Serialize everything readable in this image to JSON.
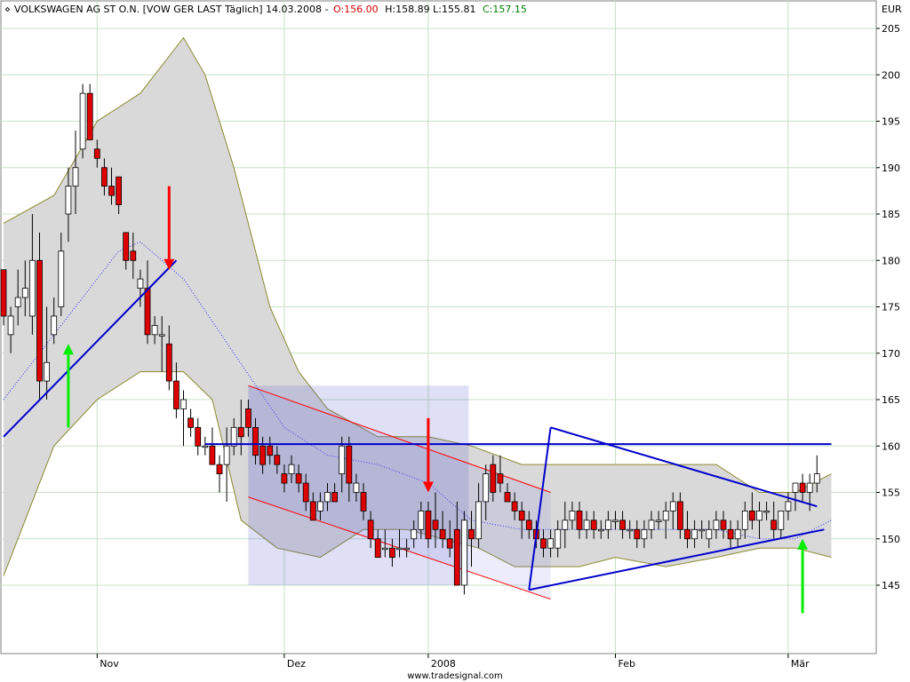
{
  "header": {
    "instrument": "VOLKSWAGEN AG ST O.N. [VOW GER LAST Täglich] 14.03.2008 -",
    "open": "O:156.00",
    "high_low": "H:158.89 L:155.81",
    "close": "C:157.15"
  },
  "credit": "www.tradesignal.com",
  "chart_data": {
    "type": "candlestick",
    "title": "VOLKSWAGEN AG ST O.N. [VOW GER LAST Täglich] 14.03.2008",
    "currency": "EUR",
    "ylim": [
      140,
      206
    ],
    "grid": true,
    "y_ticks": [
      145,
      150,
      155,
      160,
      165,
      170,
      175,
      180,
      185,
      190,
      195,
      200,
      205
    ],
    "x_ticks": [
      {
        "label": "Nov",
        "index": 13
      },
      {
        "label": "Dez",
        "index": 39
      },
      {
        "label": "2008",
        "index": 59
      },
      {
        "label": "Feb",
        "index": 85
      },
      {
        "label": "Mär",
        "index": 109
      }
    ],
    "colors": {
      "up_candle": "#ffffff",
      "down_candle": "#e00000",
      "trendline": "#0000cc",
      "channel": "#ff0000",
      "up_arrow": "#00ee00",
      "down_arrow": "#ff0000",
      "band_fill": "#d9d9d9",
      "band_line": "#8a8a30",
      "grid": "#c8e0c8"
    },
    "ohlc": [
      [
        179,
        179,
        173,
        174
      ],
      [
        172,
        175,
        170,
        174
      ],
      [
        175,
        179,
        173,
        176
      ],
      [
        176,
        180,
        174,
        177
      ],
      [
        174,
        185,
        172,
        180
      ],
      [
        180,
        183,
        165,
        167
      ],
      [
        167,
        175,
        165,
        169
      ],
      [
        172,
        176,
        171,
        174
      ],
      [
        175,
        183,
        174,
        181
      ],
      [
        185,
        190,
        182,
        188
      ],
      [
        188,
        194,
        185,
        190
      ],
      [
        192,
        199,
        191,
        198
      ],
      [
        198,
        199,
        193,
        193
      ],
      [
        192,
        193,
        190,
        191
      ],
      [
        190,
        191,
        187,
        188
      ],
      [
        188,
        190,
        186,
        187
      ],
      [
        189,
        189,
        185,
        186
      ],
      [
        183,
        183,
        179,
        180
      ],
      [
        181,
        183,
        178,
        180
      ],
      [
        177,
        179,
        175,
        178
      ],
      [
        177,
        180,
        171,
        172
      ],
      [
        172,
        174,
        171,
        173
      ],
      [
        172,
        174,
        168,
        172
      ],
      [
        171,
        173,
        166,
        167
      ],
      [
        167,
        169,
        163,
        164
      ],
      [
        164,
        166,
        160,
        165
      ],
      [
        163,
        164,
        161,
        162
      ],
      [
        162,
        163,
        159,
        160
      ],
      [
        160,
        161,
        159,
        160
      ],
      [
        160,
        162,
        158,
        158
      ],
      [
        158,
        159,
        155,
        157
      ],
      [
        158,
        162,
        154,
        160
      ],
      [
        160,
        163,
        159,
        162
      ],
      [
        162,
        165,
        159,
        161
      ],
      [
        164,
        165,
        161,
        162
      ],
      [
        162,
        163,
        158,
        159
      ],
      [
        160,
        161,
        157,
        158
      ],
      [
        160,
        161,
        158,
        159
      ],
      [
        159,
        160,
        157,
        158
      ],
      [
        157,
        158,
        155,
        156
      ],
      [
        157,
        159,
        156,
        158
      ],
      [
        157,
        158,
        155,
        156
      ],
      [
        156,
        157,
        153,
        154
      ],
      [
        154,
        155,
        152,
        152
      ],
      [
        153,
        155,
        152,
        154
      ],
      [
        154,
        156,
        153,
        155
      ],
      [
        155,
        156,
        154,
        154
      ],
      [
        157,
        161,
        155,
        160
      ],
      [
        160,
        161,
        154,
        156
      ],
      [
        155,
        157,
        154,
        156
      ],
      [
        155,
        156,
        152,
        153
      ],
      [
        152,
        153,
        149,
        150
      ],
      [
        150,
        151,
        148,
        148
      ],
      [
        149,
        151,
        148,
        149
      ],
      [
        149,
        150,
        147,
        148
      ],
      [
        149,
        151,
        148,
        149
      ],
      [
        149,
        150,
        148,
        149
      ],
      [
        150,
        152,
        149,
        151
      ],
      [
        151,
        154,
        150,
        153
      ],
      [
        153,
        154,
        149,
        150
      ],
      [
        152,
        155,
        149,
        151
      ],
      [
        151,
        153,
        149,
        150
      ],
      [
        150,
        152,
        148,
        149
      ],
      [
        151,
        154,
        145,
        145
      ],
      [
        145,
        153,
        144,
        152
      ],
      [
        151,
        153,
        147,
        150
      ],
      [
        150,
        156,
        149,
        154
      ],
      [
        154,
        158,
        152,
        157
      ],
      [
        158,
        159,
        154,
        155
      ],
      [
        157,
        159,
        155,
        156
      ],
      [
        155,
        156,
        154,
        154
      ],
      [
        154,
        155,
        152,
        153
      ],
      [
        153,
        154,
        150,
        152
      ],
      [
        152,
        153,
        150,
        151
      ],
      [
        151,
        152,
        149,
        150
      ],
      [
        150,
        151,
        148,
        149
      ],
      [
        149,
        151,
        148,
        150
      ],
      [
        149,
        152,
        148,
        151
      ],
      [
        151,
        154,
        149,
        152
      ],
      [
        152,
        154,
        151,
        153
      ],
      [
        153,
        154,
        150,
        151
      ],
      [
        151,
        153,
        150,
        152
      ],
      [
        152,
        153,
        150,
        151
      ],
      [
        151,
        152,
        150,
        151
      ],
      [
        151,
        153,
        150,
        152
      ],
      [
        152,
        153,
        151,
        152
      ],
      [
        152,
        153,
        150,
        151
      ],
      [
        151,
        152,
        150,
        151
      ],
      [
        151,
        152,
        149,
        150
      ],
      [
        150,
        152,
        149,
        151
      ],
      [
        151,
        153,
        150,
        152
      ],
      [
        152,
        153,
        151,
        152
      ],
      [
        152,
        154,
        150,
        153
      ],
      [
        153,
        155,
        151,
        154
      ],
      [
        154,
        155,
        150,
        151
      ],
      [
        151,
        153,
        149,
        150
      ],
      [
        150,
        152,
        149,
        151
      ],
      [
        151,
        152,
        150,
        151
      ],
      [
        150,
        152,
        149,
        151
      ],
      [
        151,
        153,
        150,
        152
      ],
      [
        152,
        153,
        150,
        151
      ],
      [
        151,
        152,
        149,
        150
      ],
      [
        150,
        152,
        149,
        151
      ],
      [
        151,
        154,
        150,
        153
      ],
      [
        153,
        155,
        151,
        152
      ],
      [
        152,
        154,
        150,
        153
      ],
      [
        153,
        154,
        152,
        153
      ],
      [
        152,
        154,
        150,
        151
      ],
      [
        151,
        153,
        150,
        153
      ],
      [
        153,
        155,
        152,
        154
      ],
      [
        155,
        156,
        153,
        156
      ],
      [
        156,
        157,
        154,
        155
      ],
      [
        155,
        157,
        153,
        156
      ],
      [
        156,
        159,
        155,
        157
      ]
    ],
    "middle_band": [
      [
        0,
        165
      ],
      [
        13,
        178
      ],
      [
        16,
        181
      ],
      [
        19,
        182
      ],
      [
        25,
        178
      ],
      [
        32,
        170
      ],
      [
        39,
        162
      ],
      [
        45,
        159
      ],
      [
        52,
        158
      ],
      [
        59,
        156
      ],
      [
        65,
        152
      ],
      [
        72,
        151
      ],
      [
        79,
        151
      ],
      [
        85,
        151
      ],
      [
        92,
        151
      ],
      [
        99,
        151
      ],
      [
        105,
        150
      ],
      [
        110,
        150
      ],
      [
        115,
        152
      ]
    ],
    "upper_band": [
      [
        0,
        184
      ],
      [
        7,
        187
      ],
      [
        13,
        195
      ],
      [
        19,
        198
      ],
      [
        25,
        204
      ],
      [
        28,
        200
      ],
      [
        32,
        190
      ],
      [
        37,
        175
      ],
      [
        41,
        168
      ],
      [
        45,
        164
      ],
      [
        52,
        161
      ],
      [
        59,
        161
      ],
      [
        65,
        160
      ],
      [
        72,
        158
      ],
      [
        79,
        158
      ],
      [
        85,
        158
      ],
      [
        92,
        158
      ],
      [
        99,
        158
      ],
      [
        105,
        155
      ],
      [
        110,
        155
      ],
      [
        115,
        157
      ]
    ],
    "lower_band": [
      [
        0,
        146
      ],
      [
        7,
        160
      ],
      [
        13,
        165
      ],
      [
        19,
        168
      ],
      [
        25,
        168
      ],
      [
        29,
        165
      ],
      [
        33,
        152
      ],
      [
        38,
        149
      ],
      [
        44,
        148
      ],
      [
        50,
        151
      ],
      [
        56,
        151
      ],
      [
        61,
        150
      ],
      [
        66,
        149
      ],
      [
        71,
        147
      ],
      [
        75,
        147
      ],
      [
        80,
        147
      ],
      [
        85,
        148
      ],
      [
        92,
        147
      ],
      [
        99,
        148
      ],
      [
        105,
        149
      ],
      [
        110,
        149
      ],
      [
        115,
        148
      ]
    ],
    "trendlines": [
      {
        "kind": "support",
        "from": [
          0,
          161
        ],
        "to": [
          24,
          180
        ]
      },
      {
        "kind": "resistance",
        "from": [
          28,
          160.2
        ],
        "to": [
          115,
          160.2
        ]
      },
      {
        "kind": "upper_triangle",
        "from": [
          76,
          162
        ],
        "to": [
          113,
          153.5
        ]
      },
      {
        "kind": "lower_triangle",
        "from": [
          73,
          144.5
        ],
        "to": [
          114,
          151
        ]
      }
    ],
    "channel": {
      "upper": [
        [
          34,
          166.5
        ],
        [
          76,
          155
        ]
      ],
      "lower": [
        [
          34,
          154.5
        ],
        [
          76,
          143.5
        ]
      ]
    },
    "arrows": [
      {
        "dir": "up",
        "index": 9,
        "from": 162,
        "to": 171
      },
      {
        "dir": "down",
        "index": 23,
        "from": 188,
        "to": 179
      },
      {
        "dir": "down",
        "index": 59,
        "from": 163,
        "to": 155
      },
      {
        "dir": "up",
        "index": 111,
        "from": 142,
        "to": 150
      }
    ]
  }
}
